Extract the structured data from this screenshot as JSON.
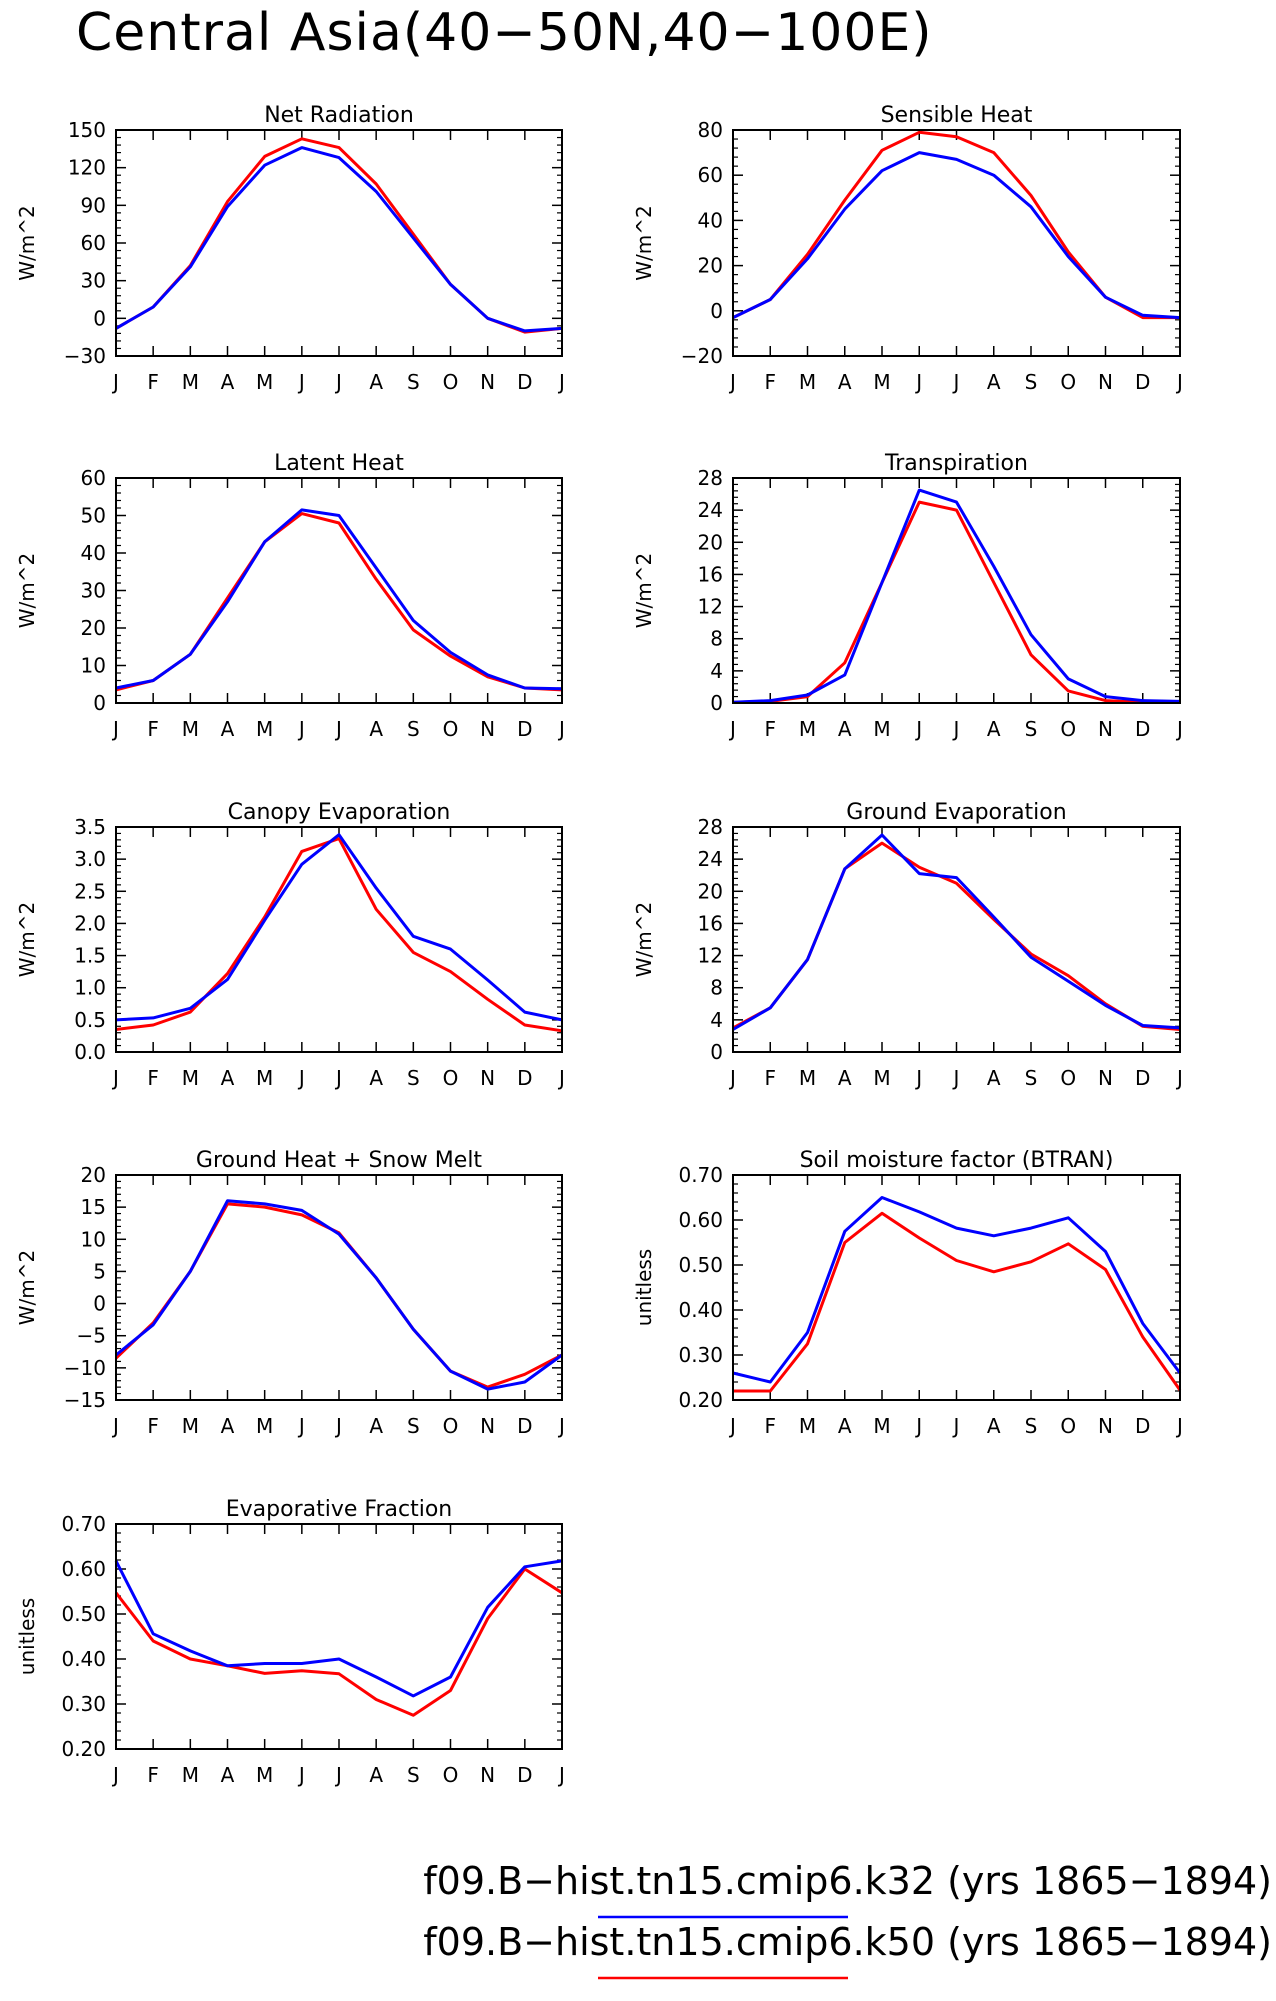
{
  "figure": {
    "title": "Central Asia(40−50N,40−100E)"
  },
  "legend": [
    {
      "label": "f09.B−hist.tn15.cmip6.k32 (yrs 1865−1894)",
      "color": "#0000ff"
    },
    {
      "label": "f09.B−hist.tn15.cmip6.k50 (yrs 1865−1894)",
      "color": "#ff0000"
    }
  ],
  "colors": {
    "k32": "#0000ff",
    "k50": "#ff0000"
  },
  "chart_data": [
    {
      "type": "line",
      "title": "Net Radiation",
      "ylabel": "W/m^2",
      "categories": [
        "J",
        "F",
        "M",
        "A",
        "M",
        "J",
        "J",
        "A",
        "S",
        "O",
        "N",
        "D",
        "J"
      ],
      "ylim": [
        -30,
        150
      ],
      "yticks": [
        -30,
        0,
        30,
        60,
        90,
        120,
        150
      ],
      "ytick_labels": [
        "−30",
        "0",
        "30",
        "60",
        "90",
        "120",
        "150"
      ],
      "series": [
        {
          "key": "k50",
          "values": [
            -8,
            9,
            42,
            93,
            129,
            143,
            136,
            107,
            67,
            27,
            0,
            -11,
            -8
          ]
        },
        {
          "key": "k32",
          "values": [
            -8,
            9,
            41,
            89,
            122,
            136,
            128,
            101,
            64,
            27,
            0,
            -10,
            -8
          ]
        }
      ]
    },
    {
      "type": "line",
      "title": "Sensible Heat",
      "ylabel": "W/m^2",
      "categories": [
        "J",
        "F",
        "M",
        "A",
        "M",
        "J",
        "J",
        "A",
        "S",
        "O",
        "N",
        "D",
        "J"
      ],
      "ylim": [
        -20,
        80
      ],
      "yticks": [
        -20,
        0,
        20,
        40,
        60,
        80
      ],
      "ytick_labels": [
        "−20",
        "0",
        "20",
        "40",
        "60",
        "80"
      ],
      "series": [
        {
          "key": "k50",
          "values": [
            -3,
            5,
            25,
            49,
            71,
            79,
            77,
            70,
            51,
            26,
            6,
            -3,
            -3
          ]
        },
        {
          "key": "k32",
          "values": [
            -3,
            5,
            23,
            45,
            62,
            70,
            67,
            60,
            46,
            24,
            6,
            -2,
            -3
          ]
        }
      ]
    },
    {
      "type": "line",
      "title": "Latent Heat",
      "ylabel": "W/m^2",
      "categories": [
        "J",
        "F",
        "M",
        "A",
        "M",
        "J",
        "J",
        "A",
        "S",
        "O",
        "N",
        "D",
        "J"
      ],
      "ylim": [
        0,
        60
      ],
      "yticks": [
        0,
        10,
        20,
        30,
        40,
        50,
        60
      ],
      "ytick_labels": [
        "0",
        "10",
        "20",
        "30",
        "40",
        "50",
        "60"
      ],
      "series": [
        {
          "key": "k50",
          "values": [
            3.5,
            6,
            13,
            28,
            43,
            50.5,
            48,
            33,
            19.5,
            12.5,
            7,
            4,
            3.5
          ]
        },
        {
          "key": "k32",
          "values": [
            4,
            6,
            13,
            27,
            43,
            51.5,
            50,
            36,
            22,
            13.5,
            7.5,
            4,
            3.8
          ]
        }
      ]
    },
    {
      "type": "line",
      "title": "Transpiration",
      "ylabel": "W/m^2",
      "categories": [
        "J",
        "F",
        "M",
        "A",
        "M",
        "J",
        "J",
        "A",
        "S",
        "O",
        "N",
        "D",
        "J"
      ],
      "ylim": [
        0,
        28
      ],
      "yticks": [
        0,
        4,
        8,
        12,
        16,
        20,
        24,
        28
      ],
      "ytick_labels": [
        "0",
        "4",
        "8",
        "12",
        "16",
        "20",
        "24",
        "28"
      ],
      "series": [
        {
          "key": "k50",
          "values": [
            0.1,
            0.2,
            0.8,
            5,
            15,
            25,
            24,
            15,
            6,
            1.5,
            0.3,
            0.1,
            0.1
          ]
        },
        {
          "key": "k32",
          "values": [
            0.1,
            0.3,
            1,
            3.5,
            15,
            26.5,
            25,
            17,
            8.5,
            3,
            0.8,
            0.3,
            0.2
          ]
        }
      ]
    },
    {
      "type": "line",
      "title": "Canopy Evaporation",
      "ylabel": "W/m^2",
      "categories": [
        "J",
        "F",
        "M",
        "A",
        "M",
        "J",
        "J",
        "A",
        "S",
        "O",
        "N",
        "D",
        "J"
      ],
      "ylim": [
        0,
        3.5
      ],
      "yticks": [
        0,
        0.5,
        1.0,
        1.5,
        2.0,
        2.5,
        3.0,
        3.5
      ],
      "ytick_labels": [
        "0.0",
        "0.5",
        "1.0",
        "1.5",
        "2.0",
        "2.5",
        "3.0",
        "3.5"
      ],
      "series": [
        {
          "key": "k50",
          "values": [
            0.35,
            0.42,
            0.62,
            1.22,
            2.1,
            3.12,
            3.32,
            2.22,
            1.55,
            1.25,
            0.82,
            0.42,
            0.33
          ]
        },
        {
          "key": "k32",
          "values": [
            0.5,
            0.53,
            0.68,
            1.13,
            2.05,
            2.92,
            3.38,
            2.55,
            1.8,
            1.6,
            1.12,
            0.62,
            0.5
          ]
        }
      ]
    },
    {
      "type": "line",
      "title": "Ground Evaporation",
      "ylabel": "W/m^2",
      "categories": [
        "J",
        "F",
        "M",
        "A",
        "M",
        "J",
        "J",
        "A",
        "S",
        "O",
        "N",
        "D",
        "J"
      ],
      "ylim": [
        0,
        28
      ],
      "yticks": [
        0,
        4,
        8,
        12,
        16,
        20,
        24,
        28
      ],
      "ytick_labels": [
        "0",
        "4",
        "8",
        "12",
        "16",
        "20",
        "24",
        "28"
      ],
      "series": [
        {
          "key": "k50",
          "values": [
            3,
            5.5,
            11.5,
            22.8,
            26,
            23,
            21,
            16.5,
            12.2,
            9.5,
            6,
            3.2,
            2.8
          ]
        },
        {
          "key": "k32",
          "values": [
            2.8,
            5.5,
            11.5,
            22.8,
            27,
            22.2,
            21.7,
            16.8,
            11.8,
            8.8,
            5.8,
            3.3,
            3
          ]
        }
      ]
    },
    {
      "type": "line",
      "title": "Ground Heat + Snow Melt",
      "ylabel": "W/m^2",
      "categories": [
        "J",
        "F",
        "M",
        "A",
        "M",
        "J",
        "J",
        "A",
        "S",
        "O",
        "N",
        "D",
        "J"
      ],
      "ylim": [
        -15,
        20
      ],
      "yticks": [
        -15,
        -10,
        -5,
        0,
        5,
        10,
        15,
        20
      ],
      "ytick_labels": [
        "−15",
        "−10",
        "−5",
        "0",
        "5",
        "10",
        "15",
        "20"
      ],
      "series": [
        {
          "key": "k50",
          "values": [
            -8.5,
            -3,
            5,
            15.5,
            15,
            13.8,
            11,
            4,
            -4,
            -10.5,
            -13,
            -11,
            -8
          ]
        },
        {
          "key": "k32",
          "values": [
            -8,
            -3.3,
            5,
            16,
            15.5,
            14.5,
            10.8,
            4,
            -4,
            -10.5,
            -13.3,
            -12.2,
            -8
          ]
        }
      ]
    },
    {
      "type": "line",
      "title": "Soil moisture factor (BTRAN)",
      "ylabel": "unitless",
      "categories": [
        "J",
        "F",
        "M",
        "A",
        "M",
        "J",
        "J",
        "A",
        "S",
        "O",
        "N",
        "D",
        "J"
      ],
      "ylim": [
        0.2,
        0.7
      ],
      "yticks": [
        0.2,
        0.3,
        0.4,
        0.5,
        0.6,
        0.7
      ],
      "ytick_labels": [
        "0.20",
        "0.30",
        "0.40",
        "0.50",
        "0.60",
        "0.70"
      ],
      "series": [
        {
          "key": "k50",
          "values": [
            0.22,
            0.22,
            0.325,
            0.55,
            0.615,
            0.56,
            0.51,
            0.485,
            0.507,
            0.547,
            0.49,
            0.34,
            0.222
          ]
        },
        {
          "key": "k32",
          "values": [
            0.26,
            0.24,
            0.35,
            0.575,
            0.65,
            0.618,
            0.582,
            0.565,
            0.582,
            0.605,
            0.53,
            0.37,
            0.26
          ]
        }
      ]
    },
    {
      "type": "line",
      "title": "Evaporative Fraction",
      "ylabel": "unitless",
      "categories": [
        "J",
        "F",
        "M",
        "A",
        "M",
        "J",
        "J",
        "A",
        "S",
        "O",
        "N",
        "D",
        "J"
      ],
      "ylim": [
        0.2,
        0.7
      ],
      "yticks": [
        0.2,
        0.3,
        0.4,
        0.5,
        0.6,
        0.7
      ],
      "ytick_labels": [
        "0.20",
        "0.30",
        "0.40",
        "0.50",
        "0.60",
        "0.70"
      ],
      "series": [
        {
          "key": "k50",
          "values": [
            0.547,
            0.44,
            0.4,
            0.385,
            0.368,
            0.374,
            0.367,
            0.31,
            0.275,
            0.33,
            0.49,
            0.6,
            0.547
          ]
        },
        {
          "key": "k32",
          "values": [
            0.618,
            0.456,
            0.418,
            0.385,
            0.39,
            0.39,
            0.4,
            0.36,
            0.318,
            0.36,
            0.515,
            0.605,
            0.618
          ]
        }
      ]
    }
  ]
}
